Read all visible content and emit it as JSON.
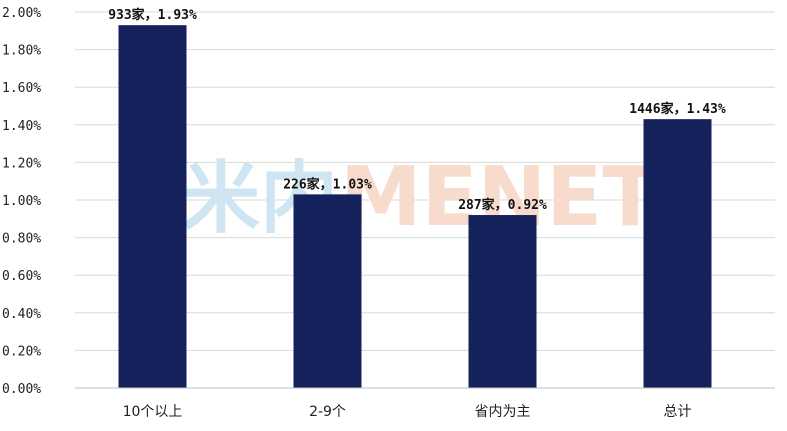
{
  "chart_data": {
    "type": "bar",
    "categories": [
      "10个以上",
      "2-9个",
      "省内为主",
      "总计"
    ],
    "values": [
      1.93,
      1.03,
      0.92,
      1.43
    ],
    "data_labels": [
      "933家，1.93%",
      "226家，1.03%",
      "287家，0.92%",
      "1446家，1.43%"
    ],
    "y_ticks": [
      "0.00%",
      "0.20%",
      "0.40%",
      "0.60%",
      "0.80%",
      "1.00%",
      "1.20%",
      "1.40%",
      "1.60%",
      "1.80%",
      "2.00%"
    ],
    "ylim": [
      0,
      2.0
    ],
    "grid": true,
    "bar_color": "#14215a",
    "grid_color": "#d9d9d9",
    "title": "",
    "xlabel": "",
    "ylabel": ""
  },
  "watermark": {
    "text_left": "米内",
    "text_right": "MENET",
    "color_left": "#cfe6f2",
    "color_right": "#f7dccd"
  }
}
